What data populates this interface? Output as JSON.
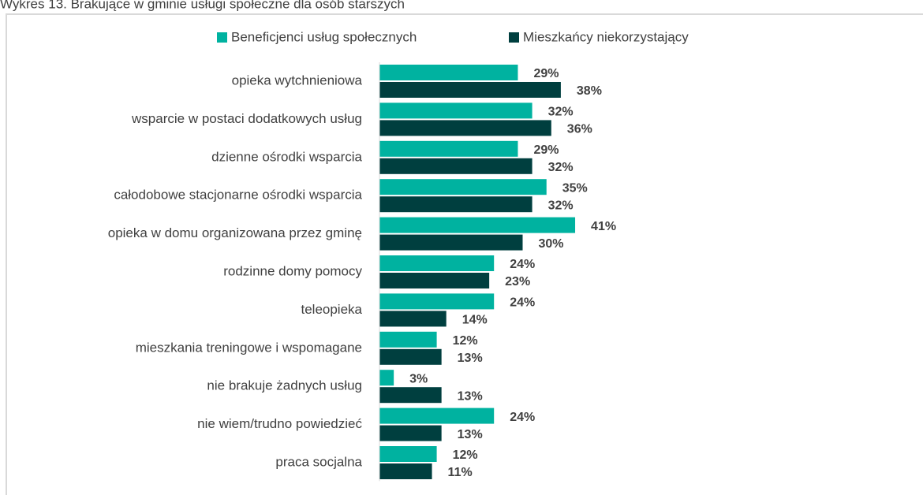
{
  "chart_data": {
    "type": "bar",
    "orientation": "horizontal",
    "title": "Wykres 13. Brakujące w gminie usługi społeczne dla osób starszych",
    "categories": [
      "opieka wytchnieniowa",
      "wsparcie w postaci dodatkowych usług",
      "dzienne ośrodki wsparcia",
      "całodobowe stacjonarne ośrodki wsparcia",
      "opieka w domu organizowana przez gminę",
      "rodzinne domy pomocy",
      "teleopieka",
      "mieszkania treningowe i wspomagane",
      "nie brakuje żadnych usług",
      "nie wiem/trudno powiedzieć",
      "praca socjalna"
    ],
    "series": [
      {
        "name": "Beneficjenci usług społecznych",
        "color": "#00b2a0",
        "values": [
          29,
          32,
          29,
          35,
          41,
          24,
          24,
          12,
          3,
          24,
          12
        ],
        "value_labels": [
          "29%",
          "32%",
          "29%",
          "35%",
          "41%",
          "24%",
          "24%",
          "12%",
          "3%",
          "24%",
          "12%"
        ]
      },
      {
        "name": "Mieszkańcy niekorzystający",
        "color": "#003f3f",
        "values": [
          38,
          36,
          32,
          32,
          30,
          23,
          14,
          13,
          13,
          13,
          11
        ],
        "value_labels": [
          "38%",
          "36%",
          "32%",
          "32%",
          "30%",
          "23%",
          "14%",
          "13%",
          "13%",
          "13%",
          "11%"
        ]
      }
    ],
    "xlim": [
      0,
      100
    ],
    "legend": "top"
  }
}
